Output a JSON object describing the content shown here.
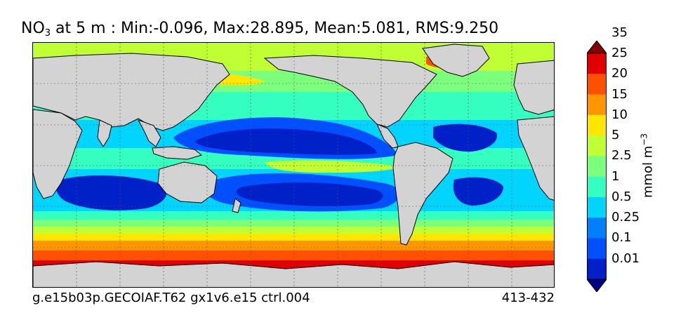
{
  "title": {
    "var": "NO",
    "sub": "3",
    "rest": " at 5 m : Min:-0.096, Max:28.895, Mean:5.081, RMS:9.250"
  },
  "footer": {
    "left": "g.e15b03p.GECOIAF.T62 gx1v6.e15 ctrl.004",
    "right": "413-432"
  },
  "colorbar": {
    "unit_main": "mmol m",
    "unit_exp": "−3",
    "levels": [
      "0.01",
      "0.1",
      "0.25",
      "0.5",
      "1",
      "2.5",
      "5",
      "10",
      "15",
      "20",
      "25",
      "35"
    ],
    "colors": [
      "#000080",
      "#0020c8",
      "#0050ff",
      "#0080ff",
      "#00d4ff",
      "#34ffc0",
      "#7cff7c",
      "#c0ff34",
      "#ffe600",
      "#ff9600",
      "#ff5000",
      "#e00000",
      "#800000"
    ]
  },
  "map": {
    "land_color": "#d3d3d3",
    "coastline_color": "#000000",
    "grid": true
  }
}
